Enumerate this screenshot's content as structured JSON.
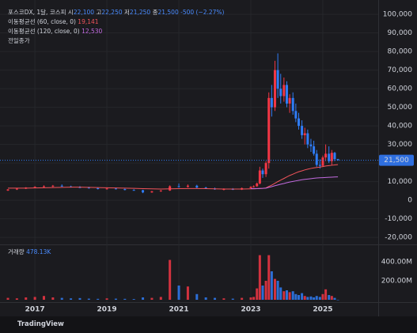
{
  "chart_data": {
    "type": "candlestick",
    "title": "포스코DX, 1달, 코스피",
    "legend": {
      "open_label": "시",
      "open": "22,100",
      "high_label": "고",
      "high": "22,250",
      "low_label": "저",
      "low": "21,250",
      "close_label": "종",
      "close": "21,500",
      "change": "-500 (−2.27%)",
      "prev_close": "전일종가"
    },
    "x": [
      2016.25,
      2016.5,
      2016.75,
      2017.0,
      2017.25,
      2017.5,
      2017.75,
      2018.0,
      2018.25,
      2018.5,
      2018.75,
      2019.0,
      2019.25,
      2019.5,
      2019.75,
      2020.0,
      2020.25,
      2020.5,
      2020.75,
      2021.0,
      2021.25,
      2021.5,
      2021.75,
      2022.0,
      2022.25,
      2022.5,
      2022.75,
      2023.0,
      2023.08,
      2023.17,
      2023.25,
      2023.33,
      2023.42,
      2023.5,
      2023.58,
      2023.67,
      2023.75,
      2023.83,
      2023.92,
      2024.0,
      2024.08,
      2024.17,
      2024.25,
      2024.33,
      2024.42,
      2024.5,
      2024.58,
      2024.67,
      2024.75,
      2024.83,
      2024.92,
      2025.0,
      2025.08,
      2025.17,
      2025.25,
      2025.33,
      2025.42
    ],
    "open": [
      5200,
      5800,
      6200,
      6800,
      7200,
      7500,
      7800,
      7400,
      7000,
      6800,
      6500,
      6000,
      6300,
      6000,
      5500,
      5400,
      4200,
      4800,
      5200,
      7500,
      7200,
      7800,
      6800,
      6300,
      5800,
      6000,
      5700,
      6500,
      7200,
      7500,
      9000,
      16000,
      14000,
      20000,
      55000,
      50000,
      70000,
      60000,
      56000,
      62000,
      52000,
      55000,
      48000,
      44000,
      40000,
      35000,
      36000,
      30000,
      29000,
      25000,
      19000,
      18500,
      23000,
      25000,
      21000,
      25500,
      22100
    ],
    "high": [
      6000,
      6500,
      7000,
      7500,
      8000,
      8200,
      8500,
      7800,
      7600,
      7200,
      6900,
      6600,
      6700,
      6300,
      5900,
      5600,
      5000,
      5500,
      8000,
      9000,
      8500,
      8300,
      7200,
      6800,
      6400,
      6500,
      6800,
      7500,
      8000,
      9500,
      18000,
      17000,
      21000,
      58000,
      62000,
      75000,
      79000,
      68000,
      66000,
      64000,
      57000,
      58000,
      52000,
      47000,
      43000,
      39000,
      38000,
      33000,
      32000,
      27000,
      22000,
      24000,
      30000,
      29000,
      27000,
      26000,
      22250
    ],
    "low": [
      5000,
      5500,
      6000,
      6500,
      6800,
      7000,
      7200,
      6800,
      6500,
      6200,
      5800,
      5700,
      5800,
      5300,
      5200,
      3800,
      4000,
      4500,
      5000,
      6800,
      6800,
      6500,
      6000,
      5600,
      5300,
      5500,
      5500,
      6300,
      6800,
      7200,
      8500,
      12000,
      12500,
      17000,
      45000,
      48000,
      55000,
      52000,
      53000,
      50000,
      47000,
      46000,
      42000,
      38000,
      33000,
      30000,
      28000,
      26000,
      24000,
      18000,
      17000,
      18000,
      21000,
      20000,
      19000,
      21000,
      21250
    ],
    "close": [
      5800,
      6200,
      6800,
      7200,
      7500,
      7800,
      7400,
      7000,
      6800,
      6500,
      6000,
      6300,
      6000,
      5500,
      5400,
      4200,
      4800,
      5200,
      7500,
      7200,
      7800,
      6800,
      6300,
      5800,
      6000,
      5700,
      6500,
      7200,
      7500,
      9000,
      16000,
      14000,
      20000,
      55000,
      50000,
      70000,
      60000,
      56000,
      62000,
      52000,
      55000,
      48000,
      44000,
      40000,
      35000,
      36000,
      30000,
      29000,
      25000,
      19000,
      18500,
      23000,
      25000,
      21000,
      25500,
      22100,
      21500
    ],
    "up_color": "#f23645",
    "down_color": "#2f7cf6",
    "last_price_label": "21,500",
    "series": [
      {
        "name": "이동평균선 (60, close, 0)",
        "value_label": "19,141",
        "color": "#f2545b",
        "values": [
          6500,
          6500,
          6500,
          6600,
          6700,
          6800,
          6900,
          7000,
          7000,
          6900,
          6800,
          6700,
          6600,
          6500,
          6400,
          6200,
          6100,
          6000,
          6100,
          6200,
          6300,
          6300,
          6200,
          6100,
          6000,
          6000,
          6000,
          6100,
          6100,
          6200,
          6300,
          6400,
          6600,
          7400,
          8100,
          9100,
          10000,
          10800,
          11700,
          12500,
          13300,
          14000,
          14700,
          15300,
          15800,
          16300,
          16700,
          17100,
          17400,
          17600,
          17800,
          18100,
          18400,
          18600,
          18800,
          19000,
          19141
        ]
      },
      {
        "name": "이동평균선 (120, close, 0)",
        "value_label": "12,530",
        "color": "#c36be0",
        "values": [
          null,
          null,
          null,
          null,
          null,
          null,
          null,
          null,
          null,
          null,
          null,
          null,
          null,
          null,
          null,
          null,
          null,
          null,
          null,
          null,
          null,
          null,
          null,
          null,
          null,
          null,
          null,
          6200,
          6250,
          6300,
          6350,
          6400,
          6500,
          6900,
          7300,
          7800,
          8200,
          8600,
          9000,
          9400,
          9800,
          10100,
          10400,
          10700,
          11000,
          11200,
          11400,
          11600,
          11800,
          11950,
          12050,
          12150,
          12250,
          12330,
          12400,
          12470,
          12530
        ]
      }
    ],
    "ylim": [
      -22500,
      104300
    ],
    "yticks": [
      {
        "value": 100000,
        "label": "100,000"
      },
      {
        "value": 90000,
        "label": "90,000"
      },
      {
        "value": 80000,
        "label": "80,000"
      },
      {
        "value": 70000,
        "label": "70,000"
      },
      {
        "value": 60000,
        "label": "60,000"
      },
      {
        "value": 50000,
        "label": "50,000"
      },
      {
        "value": 40000,
        "label": "40,000"
      },
      {
        "value": 30000,
        "label": "30,000"
      },
      {
        "value": 20000,
        "label": "20,000"
      },
      {
        "value": 10000,
        "label": "10,000"
      },
      0,
      {
        "value": -10000,
        "label": "-10,000"
      },
      {
        "value": -20000,
        "label": "-20,000"
      }
    ],
    "xlim": [
      2016.03,
      2026.54
    ],
    "xticks": [
      2017,
      2019,
      2021,
      2023,
      2025
    ],
    "grid": true,
    "volume": {
      "name": "거래량",
      "value_label": "478.13K",
      "values": [
        20000000,
        15000000,
        25000000,
        30000000,
        40000000,
        25000000,
        20000000,
        15000000,
        18000000,
        12000000,
        10000000,
        15000000,
        12000000,
        10000000,
        8000000,
        25000000,
        20000000,
        30000000,
        420000000,
        150000000,
        140000000,
        60000000,
        25000000,
        20000000,
        15000000,
        12000000,
        20000000,
        25000000,
        30000000,
        120000000,
        470000000,
        150000000,
        200000000,
        470000000,
        300000000,
        220000000,
        200000000,
        130000000,
        90000000,
        100000000,
        80000000,
        90000000,
        60000000,
        50000000,
        70000000,
        40000000,
        30000000,
        35000000,
        25000000,
        40000000,
        30000000,
        60000000,
        110000000,
        50000000,
        40000000,
        20000000,
        478130
      ],
      "ylim": [
        0,
        550000000
      ],
      "yticks": [
        {
          "value": 400000000,
          "label": "400.00M"
        },
        {
          "value": 200000000,
          "label": "200.00M"
        }
      ]
    },
    "footer": "TradingView"
  }
}
